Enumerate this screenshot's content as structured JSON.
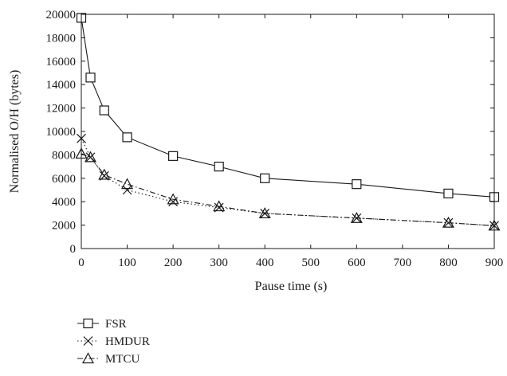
{
  "chart_data": {
    "type": "line",
    "title": "",
    "xlabel": "Pause time (s)",
    "ylabel": "Normalised O/H (bytes)",
    "xlim": [
      0,
      900
    ],
    "ylim": [
      0,
      20000
    ],
    "x_ticks": [
      0,
      100,
      200,
      300,
      400,
      500,
      600,
      700,
      800,
      900
    ],
    "y_ticks": [
      0,
      2000,
      4000,
      6000,
      8000,
      10000,
      12000,
      14000,
      16000,
      18000,
      20000
    ],
    "grid": false,
    "legend_position": "bottom-left",
    "series": [
      {
        "name": "FSR",
        "marker": "square",
        "line_style": "solid",
        "x": [
          0,
          20,
          50,
          100,
          200,
          300,
          400,
          600,
          800,
          900
        ],
        "y": [
          19700,
          14600,
          11800,
          9500,
          7900,
          7000,
          6000,
          5500,
          4700,
          4400
        ]
      },
      {
        "name": "HMDUR",
        "marker": "cross",
        "line_style": "dotted",
        "x": [
          0,
          20,
          50,
          100,
          200,
          300,
          400,
          600,
          800,
          900
        ],
        "y": [
          9400,
          7800,
          6200,
          5000,
          4000,
          3500,
          3000,
          2600,
          2200,
          1950
        ]
      },
      {
        "name": "MTCU",
        "marker": "triangle",
        "line_style": "dash-dot",
        "x": [
          0,
          20,
          50,
          100,
          200,
          300,
          400,
          600,
          800,
          900
        ],
        "y": [
          8100,
          7800,
          6300,
          5500,
          4200,
          3600,
          3000,
          2600,
          2200,
          1950
        ]
      }
    ]
  }
}
